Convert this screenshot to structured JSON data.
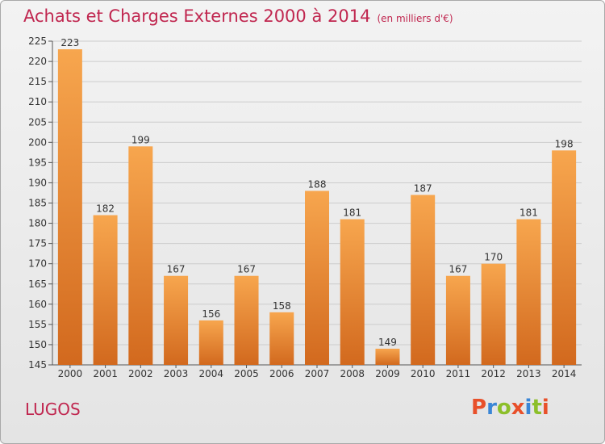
{
  "header": {
    "title": "Achats et Charges Externes 2000 à 2014",
    "subtitle": "(en milliers d'€)"
  },
  "footer": {
    "city": "LUGOS",
    "logo_text": "Proxiti"
  },
  "colors": {
    "title": "#c0264f",
    "bar_light": "#f7a64e",
    "bar_dark": "#d2691e",
    "grid": "#cccccc"
  },
  "logo_colors": [
    "#e8502a",
    "#3a86d6",
    "#8cbf2a",
    "#e8502a",
    "#3a86d6",
    "#8cbf2a",
    "#e8502a"
  ],
  "chart_data": {
    "type": "bar",
    "title": "Achats et Charges Externes 2000 à 2014",
    "subtitle": "(en milliers d'€)",
    "categories": [
      "2000",
      "2001",
      "2002",
      "2003",
      "2004",
      "2005",
      "2006",
      "2007",
      "2008",
      "2009",
      "2010",
      "2011",
      "2012",
      "2013",
      "2014"
    ],
    "values": [
      223,
      182,
      199,
      167,
      156,
      167,
      158,
      188,
      181,
      149,
      187,
      167,
      170,
      181,
      198
    ],
    "ylim": [
      145,
      225
    ],
    "yticks": [
      145,
      150,
      155,
      160,
      165,
      170,
      175,
      180,
      185,
      190,
      195,
      200,
      205,
      210,
      215,
      220,
      225
    ],
    "grid": true,
    "legend": "none"
  }
}
